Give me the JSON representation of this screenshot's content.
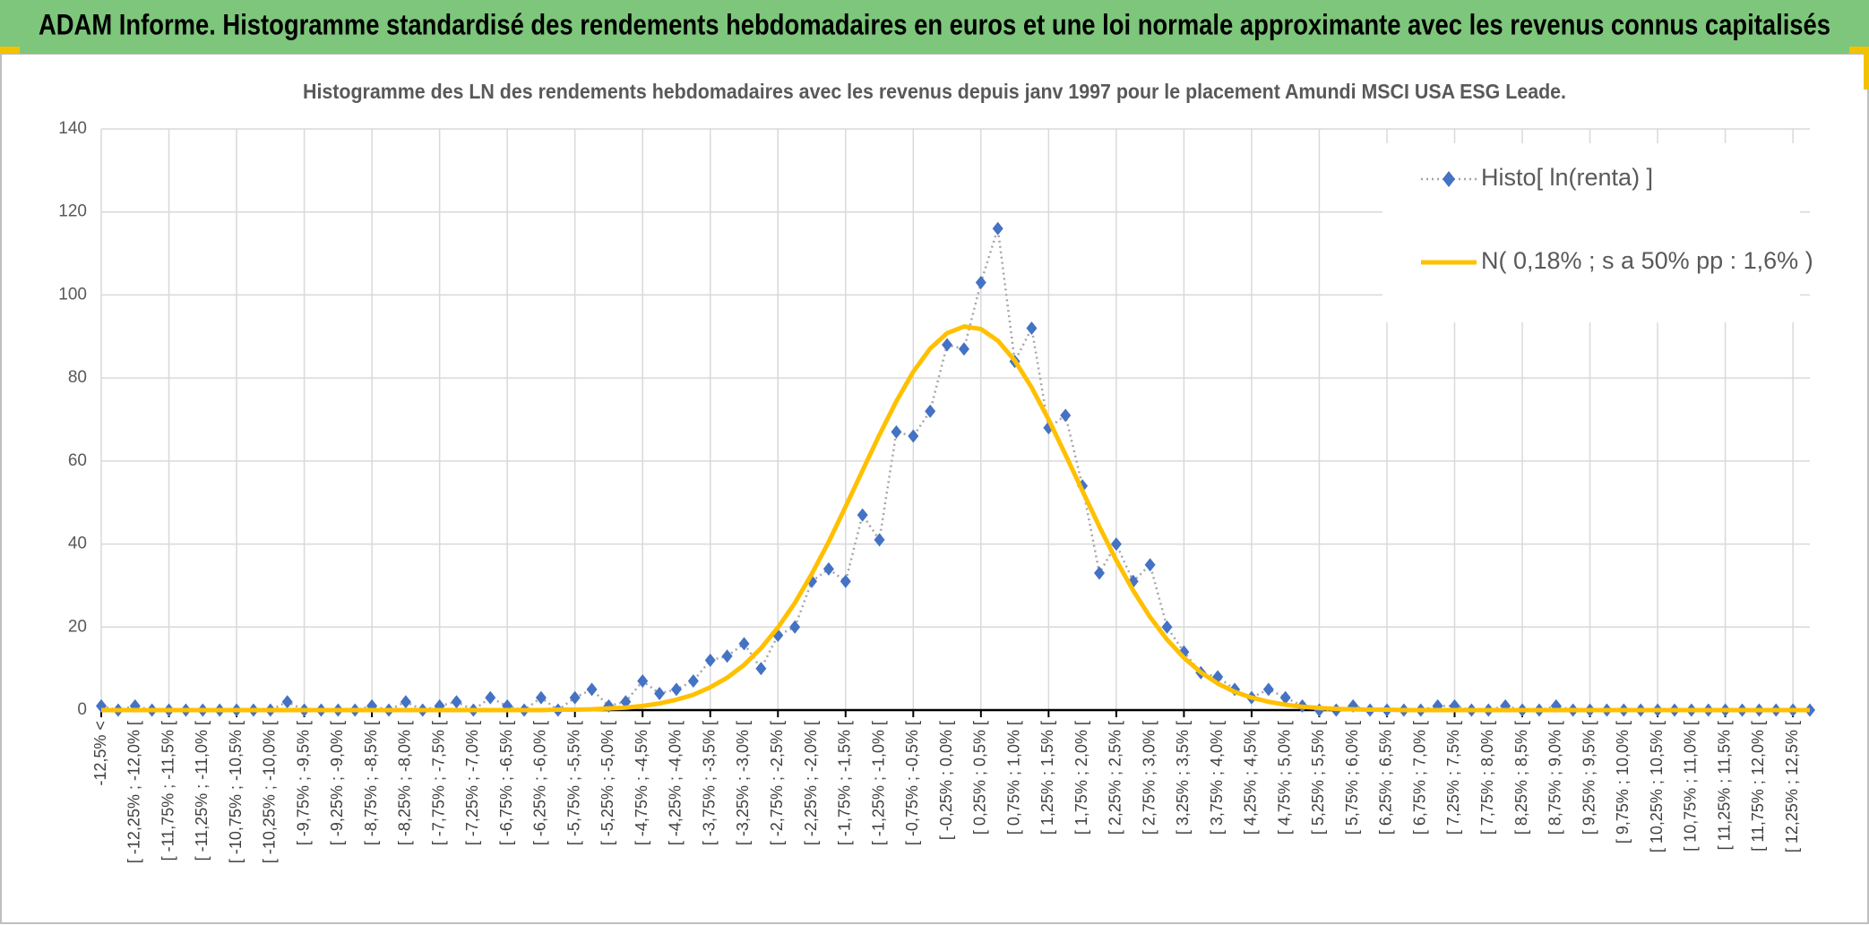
{
  "chart_data": {
    "type": "line",
    "title": "ADAM Informe. Histogramme standardisé des rendements hebdomadaires en euros et une loi normale approximante avec les revenus connus capitalisés",
    "subtitle": "Histogramme des LN des rendements hebdomadaires avec les revenus depuis janv 1997 pour le placement Amundi MSCI USA ESG Leade.",
    "categories": [
      "-12,5% <",
      null,
      "[ -12,25% ; -12,0% [",
      null,
      "[ -11,75% ; -11,5% [",
      null,
      "[ -11,25% ; -11,0% [",
      null,
      "[ -10,75% ; -10,5% [",
      null,
      "[ -10,25% ; -10,0% [",
      null,
      "[ -9,75% ; -9,5% [",
      null,
      "[ -9,25% ; -9,0% [",
      null,
      "[ -8,75% ; -8,5% [",
      null,
      "[ -8,25% ; -8,0% [",
      null,
      "[ -7,75% ; -7,5% [",
      null,
      "[ -7,25% ; -7,0% [",
      null,
      "[ -6,75% ; -6,5% [",
      null,
      "[ -6,25% ; -6,0% [",
      null,
      "[ -5,75% ; -5,5% [",
      null,
      "[ -5,25% ; -5,0% [",
      null,
      "[ -4,75% ; -4,5% [",
      null,
      "[ -4,25% ; -4,0% [",
      null,
      "[ -3,75% ; -3,5% [",
      null,
      "[ -3,25% ; -3,0% [",
      null,
      "[ -2,75% ; -2,5% [",
      null,
      "[ -2,25% ; -2,0% [",
      null,
      "[ -1,75% ; -1,5% [",
      null,
      "[ -1,25% ; -1,0% [",
      null,
      "[ -0,75% ; -0,5% [",
      null,
      "[ -0,25% ; 0,0% [",
      null,
      "[ 0,25% ; 0,5% [",
      null,
      "[ 0,75% ; 1,0% [",
      null,
      "[ 1,25% ; 1,5% [",
      null,
      "[ 1,75% ; 2,0% [",
      null,
      "[ 2,25% ; 2,5% [",
      null,
      "[ 2,75% ; 3,0% [",
      null,
      "[ 3,25% ; 3,5% [",
      null,
      "[ 3,75% ; 4,0% [",
      null,
      "[ 4,25% ; 4,5% [",
      null,
      "[ 4,75% ; 5,0% [",
      null,
      "[ 5,25% ; 5,5% [",
      null,
      "[ 5,75% ; 6,0% [",
      null,
      "[ 6,25% ; 6,5% [",
      null,
      "[ 6,75% ; 7,0% [",
      null,
      "[ 7,25% ; 7,5% [",
      null,
      "[ 7,75% ; 8,0% [",
      null,
      "[ 8,25% ; 8,5% [",
      null,
      "[ 8,75% ; 9,0% [",
      null,
      "[ 9,25% ; 9,5% [",
      null,
      "[ 9,75% ; 10,0% [",
      null,
      "[ 10,25% ; 10,5% [",
      null,
      "[ 10,75% ; 11,0% [",
      null,
      "[ 11,25% ; 11,5% [",
      null,
      "[ 11,75% ; 12,0% [",
      null,
      "[ 12,25% ; 12,5% [",
      null
    ],
    "series": [
      {
        "name": "Histo[ ln(renta) ]",
        "color": "#4472c4",
        "line_color": "#a5a5a5",
        "line_style": "dotted",
        "marker": "diamond",
        "values": [
          1,
          0,
          1,
          0,
          0,
          0,
          0,
          0,
          0,
          0,
          0,
          2,
          0,
          0,
          0,
          0,
          1,
          0,
          2,
          0,
          1,
          2,
          0,
          3,
          1,
          0,
          3,
          0,
          3,
          5,
          1,
          2,
          7,
          4,
          5,
          7,
          12,
          13,
          16,
          10,
          18,
          20,
          31,
          34,
          31,
          47,
          41,
          67,
          66,
          72,
          88,
          87,
          103,
          116,
          84,
          92,
          68,
          71,
          54,
          33,
          40,
          31,
          35,
          20,
          14,
          9,
          8,
          5,
          3,
          5,
          3,
          1,
          0,
          0,
          1,
          0,
          0,
          0,
          0,
          1,
          1,
          0,
          0,
          1,
          0,
          0,
          1,
          0,
          0,
          0,
          0,
          0,
          0,
          0,
          0,
          0,
          0,
          0,
          0,
          0,
          0,
          0
        ]
      },
      {
        "name": "N( 0,18% ; s a 50% pp : 1,6% )",
        "color": "#ffc000",
        "line_style": "solid",
        "marker": "none",
        "values": [
          0,
          0,
          0,
          0,
          0,
          0,
          0,
          0,
          0,
          0,
          0,
          0,
          0,
          0,
          0,
          0,
          0,
          0,
          0,
          0,
          0,
          0,
          0,
          0,
          0,
          0,
          0,
          0.1,
          0.1,
          0.2,
          0.4,
          0.6,
          1.0,
          1.6,
          2.5,
          3.7,
          5.5,
          7.8,
          10.9,
          14.9,
          19.9,
          25.8,
          32.8,
          40.5,
          49.0,
          57.7,
          66.3,
          74.4,
          81.5,
          87.1,
          90.8,
          92.4,
          91.8,
          89.0,
          84.2,
          77.7,
          70.0,
          61.5,
          52.8,
          44.2,
          36.1,
          28.8,
          22.4,
          17.0,
          12.6,
          9.1,
          6.4,
          4.4,
          3.0,
          2.0,
          1.3,
          0.8,
          0.5,
          0.3,
          0.2,
          0.1,
          0.1,
          0,
          0,
          0,
          0,
          0,
          0,
          0,
          0,
          0,
          0,
          0,
          0,
          0,
          0,
          0,
          0,
          0,
          0,
          0,
          0,
          0,
          0,
          0,
          0,
          0
        ]
      }
    ],
    "ylim": [
      0,
      140
    ],
    "yticks": [
      0,
      20,
      40,
      60,
      80,
      100,
      120,
      140
    ],
    "grid": true,
    "legend": "top-right"
  }
}
